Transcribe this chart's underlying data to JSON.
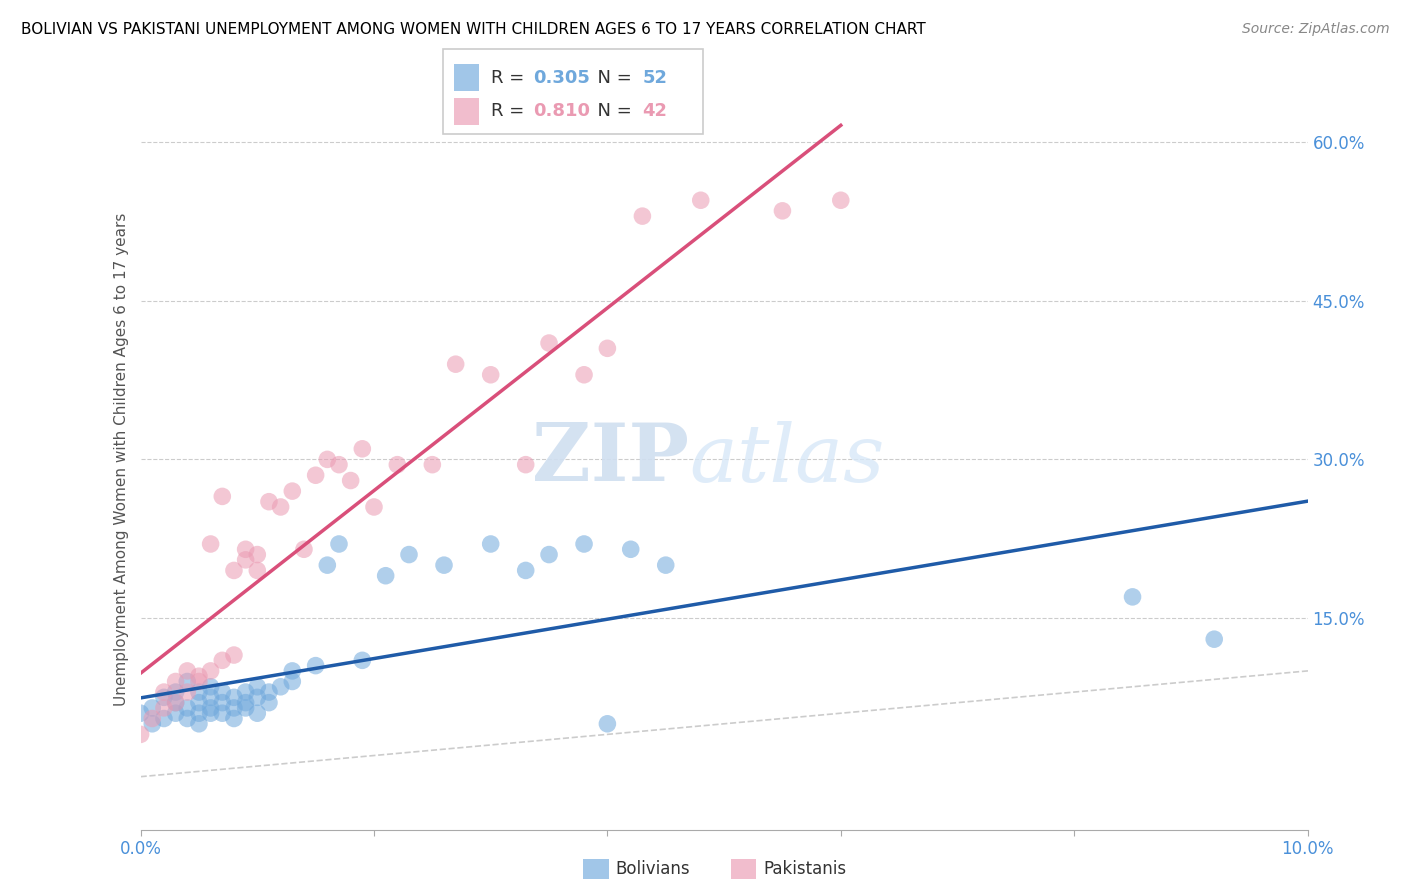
{
  "title": "BOLIVIAN VS PAKISTANI UNEMPLOYMENT AMONG WOMEN WITH CHILDREN AGES 6 TO 17 YEARS CORRELATION CHART",
  "source": "Source: ZipAtlas.com",
  "ylabel": "Unemployment Among Women with Children Ages 6 to 17 years",
  "xlim": [
    0.0,
    0.1
  ],
  "ylim": [
    -0.05,
    0.65
  ],
  "ytick_positions": [
    0.15,
    0.3,
    0.45,
    0.6
  ],
  "ytick_labels": [
    "15.0%",
    "30.0%",
    "45.0%",
    "60.0%"
  ],
  "R_bolivian": 0.305,
  "N_bolivian": 52,
  "R_pakistani": 0.81,
  "N_pakistani": 42,
  "bolivian_color": "#6fa8dc",
  "pakistani_color": "#ea9ab2",
  "trendline_bolivian_color": "#1f5ba8",
  "trendline_pakistani_color": "#d94f7a",
  "background_color": "#ffffff",
  "grid_color": "#cccccc",
  "watermark_zip": "ZIP",
  "watermark_atlas": "atlas",
  "bolivians_x": [
    0.0,
    0.001,
    0.001,
    0.002,
    0.002,
    0.003,
    0.003,
    0.003,
    0.004,
    0.004,
    0.004,
    0.005,
    0.005,
    0.005,
    0.005,
    0.006,
    0.006,
    0.006,
    0.006,
    0.007,
    0.007,
    0.007,
    0.008,
    0.008,
    0.008,
    0.009,
    0.009,
    0.009,
    0.01,
    0.01,
    0.01,
    0.011,
    0.011,
    0.012,
    0.013,
    0.013,
    0.015,
    0.016,
    0.017,
    0.019,
    0.021,
    0.023,
    0.026,
    0.03,
    0.033,
    0.035,
    0.038,
    0.04,
    0.042,
    0.045,
    0.085,
    0.092
  ],
  "bolivians_y": [
    0.06,
    0.05,
    0.065,
    0.055,
    0.075,
    0.06,
    0.08,
    0.07,
    0.065,
    0.055,
    0.09,
    0.06,
    0.07,
    0.08,
    0.05,
    0.065,
    0.075,
    0.06,
    0.085,
    0.07,
    0.06,
    0.08,
    0.065,
    0.055,
    0.075,
    0.08,
    0.065,
    0.07,
    0.06,
    0.075,
    0.085,
    0.07,
    0.08,
    0.085,
    0.1,
    0.09,
    0.105,
    0.2,
    0.22,
    0.11,
    0.19,
    0.21,
    0.2,
    0.22,
    0.195,
    0.21,
    0.22,
    0.05,
    0.215,
    0.2,
    0.17,
    0.13
  ],
  "pakistanis_x": [
    0.0,
    0.001,
    0.002,
    0.002,
    0.003,
    0.003,
    0.004,
    0.004,
    0.005,
    0.005,
    0.006,
    0.006,
    0.007,
    0.007,
    0.008,
    0.008,
    0.009,
    0.009,
    0.01,
    0.01,
    0.011,
    0.012,
    0.013,
    0.014,
    0.015,
    0.016,
    0.017,
    0.018,
    0.019,
    0.02,
    0.022,
    0.025,
    0.027,
    0.03,
    0.033,
    0.035,
    0.038,
    0.04,
    0.043,
    0.048,
    0.055,
    0.06
  ],
  "pakistanis_y": [
    0.04,
    0.055,
    0.065,
    0.08,
    0.07,
    0.09,
    0.08,
    0.1,
    0.09,
    0.095,
    0.1,
    0.22,
    0.11,
    0.265,
    0.115,
    0.195,
    0.205,
    0.215,
    0.195,
    0.21,
    0.26,
    0.255,
    0.27,
    0.215,
    0.285,
    0.3,
    0.295,
    0.28,
    0.31,
    0.255,
    0.295,
    0.295,
    0.39,
    0.38,
    0.295,
    0.41,
    0.38,
    0.405,
    0.53,
    0.545,
    0.535,
    0.545
  ]
}
